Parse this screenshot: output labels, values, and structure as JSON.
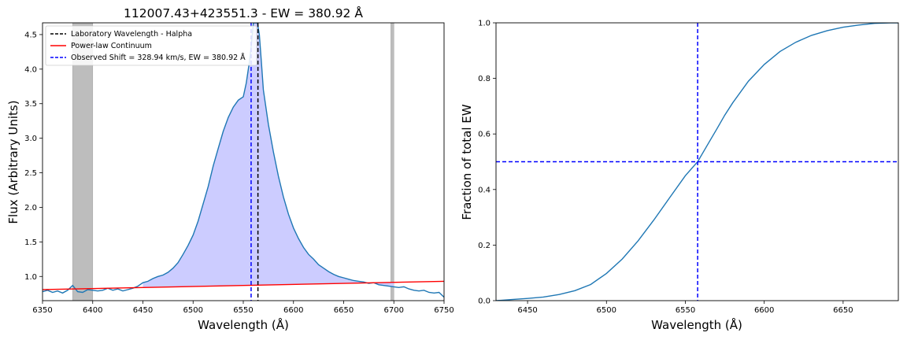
{
  "chart_data": [
    {
      "type": "line",
      "title": "112007.43+423551.3 - EW = 380.92 Å",
      "xlabel": "Wavelength (Å)",
      "ylabel": "Flux (Arbitrary Units)",
      "xlim": [
        6350,
        6750
      ],
      "ylim": [
        0.65,
        4.67
      ],
      "xticks": [
        "6350",
        "6400",
        "6450",
        "6500",
        "6550",
        "6600",
        "6650",
        "6700",
        "6750"
      ],
      "yticks": [
        "1.0",
        "1.5",
        "2.0",
        "2.5",
        "3.0",
        "3.5",
        "4.0",
        "4.5"
      ],
      "grid": false,
      "legend_position": "top-left",
      "legend": [
        {
          "label": "Laboratory Wavelength - Halpha",
          "color": "#000000",
          "style": "dashed"
        },
        {
          "label": "Power-law Continuum",
          "color": "#ff0000",
          "style": "solid"
        },
        {
          "label": "Observed Shift = 328.94 km/s, EW = 380.92 Å",
          "color": "#0000ff",
          "style": "dashed"
        }
      ],
      "excluded_regions": [
        [
          6380,
          6400
        ],
        [
          6697,
          6700
        ]
      ],
      "lab_wavelength": 6564.6,
      "observed_wavelength": 6557.8,
      "continuum": {
        "x": [
          6350,
          6750
        ],
        "y": [
          0.81,
          0.93
        ]
      },
      "spectrum": {
        "x": [
          6350,
          6355,
          6360,
          6365,
          6370,
          6375,
          6380,
          6385,
          6390,
          6395,
          6400,
          6405,
          6410,
          6415,
          6420,
          6425,
          6430,
          6435,
          6440,
          6445,
          6450,
          6455,
          6460,
          6465,
          6470,
          6475,
          6480,
          6485,
          6490,
          6495,
          6500,
          6505,
          6510,
          6515,
          6520,
          6525,
          6530,
          6535,
          6540,
          6545,
          6550,
          6553,
          6556,
          6558,
          6560,
          6562,
          6564,
          6566,
          6568,
          6570,
          6575,
          6580,
          6585,
          6590,
          6595,
          6600,
          6605,
          6610,
          6615,
          6620,
          6625,
          6630,
          6635,
          6640,
          6645,
          6650,
          6655,
          6660,
          6665,
          6670,
          6675,
          6680,
          6685,
          6690,
          6695,
          6700,
          6705,
          6710,
          6715,
          6720,
          6725,
          6730,
          6735,
          6740,
          6745,
          6750
        ],
        "y": [
          0.78,
          0.8,
          0.77,
          0.79,
          0.76,
          0.8,
          0.87,
          0.78,
          0.77,
          0.81,
          0.8,
          0.79,
          0.8,
          0.83,
          0.8,
          0.82,
          0.79,
          0.81,
          0.83,
          0.86,
          0.91,
          0.93,
          0.97,
          1.0,
          1.02,
          1.06,
          1.12,
          1.2,
          1.32,
          1.45,
          1.6,
          1.8,
          2.05,
          2.3,
          2.6,
          2.85,
          3.1,
          3.3,
          3.45,
          3.55,
          3.6,
          3.8,
          4.1,
          4.35,
          4.67,
          4.67,
          4.67,
          4.5,
          4.1,
          3.7,
          3.2,
          2.8,
          2.45,
          2.15,
          1.9,
          1.7,
          1.55,
          1.42,
          1.32,
          1.25,
          1.17,
          1.12,
          1.07,
          1.03,
          1.0,
          0.98,
          0.96,
          0.94,
          0.93,
          0.92,
          0.9,
          0.91,
          0.88,
          0.87,
          0.86,
          0.85,
          0.84,
          0.85,
          0.82,
          0.8,
          0.79,
          0.8,
          0.77,
          0.76,
          0.77,
          0.7
        ]
      }
    },
    {
      "type": "line",
      "title": "",
      "xlabel": "Wavelength (Å)",
      "ylabel": "Fraction of total EW",
      "xlim": [
        6430,
        6685
      ],
      "ylim": [
        0.0,
        1.0
      ],
      "xticks": [
        "6450",
        "6500",
        "6550",
        "6600",
        "6650"
      ],
      "yticks": [
        "0.0",
        "0.2",
        "0.4",
        "0.6",
        "0.8",
        "1.0"
      ],
      "grid": false,
      "hline": 0.5,
      "vline": 6557.8,
      "series": [
        {
          "x": [
            6430,
            6440,
            6450,
            6460,
            6470,
            6480,
            6490,
            6500,
            6510,
            6520,
            6530,
            6540,
            6550,
            6557.8,
            6565,
            6570,
            6575,
            6580,
            6590,
            6600,
            6610,
            6620,
            6630,
            6640,
            6650,
            6660,
            6670,
            6680,
            6685
          ],
          "y": [
            0.0,
            0.004,
            0.008,
            0.013,
            0.022,
            0.036,
            0.058,
            0.098,
            0.15,
            0.215,
            0.29,
            0.37,
            0.45,
            0.5,
            0.57,
            0.618,
            0.668,
            0.712,
            0.79,
            0.85,
            0.897,
            0.93,
            0.955,
            0.972,
            0.984,
            0.992,
            0.998,
            1.0,
            1.0
          ]
        }
      ]
    }
  ]
}
